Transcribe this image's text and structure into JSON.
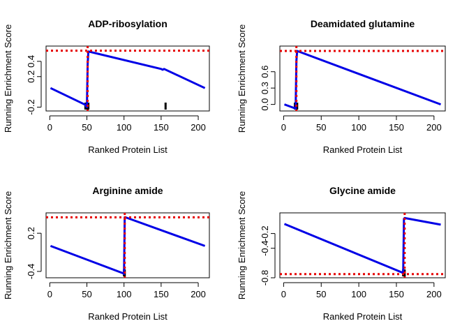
{
  "chart_data": [
    {
      "type": "line",
      "title": "ADP-ribosylation",
      "xlabel": "Ranked Protein List",
      "ylabel": "Running Enrichment Score",
      "xlim": [
        -5,
        215
      ],
      "ylim": [
        -0.25,
        0.6
      ],
      "xticks": [
        0,
        50,
        100,
        150,
        200
      ],
      "yticks": [
        -0.2,
        0.2,
        0.4
      ],
      "ytick_labels": [
        "-0.2",
        "0.2",
        "0.4"
      ],
      "x": [
        1,
        48,
        49,
        50,
        51,
        52,
        150,
        152,
        154,
        209
      ],
      "y": [
        0.05,
        -0.17,
        -0.19,
        -0.2,
        0.36,
        0.53,
        0.3,
        0.29,
        0.3,
        0.05
      ],
      "max_line": 0.54,
      "enrichment_x": 51,
      "hits": [
        48,
        49,
        50,
        51,
        52,
        156
      ]
    },
    {
      "type": "line",
      "title": "Deamidated glutamine",
      "xlabel": "Ranked Protein List",
      "ylabel": "Running Enrichment Score",
      "xlim": [
        -5,
        215
      ],
      "ylim": [
        -0.12,
        1.07
      ],
      "xticks": [
        0,
        50,
        100,
        150,
        200
      ],
      "yticks": [
        0.0,
        0.3,
        0.6
      ],
      "ytick_labels": [
        "0.0",
        "0.3",
        "0.6"
      ],
      "x": [
        1,
        15,
        16,
        17,
        18,
        209
      ],
      "y": [
        0.0,
        -0.07,
        -0.08,
        0.8,
        0.98,
        0.0
      ],
      "max_line": 0.98,
      "enrichment_x": 17,
      "hits": [
        15,
        16,
        17,
        18
      ]
    },
    {
      "type": "line",
      "title": "Arginine amide",
      "xlabel": "Ranked Protein List",
      "ylabel": "Running Enrichment Score",
      "xlim": [
        -5,
        215
      ],
      "ylim": [
        -0.5,
        0.52
      ],
      "xticks": [
        0,
        50,
        100,
        150,
        200
      ],
      "yticks": [
        -0.4,
        0.2
      ],
      "ytick_labels": [
        "-0.4",
        "0.2"
      ],
      "x": [
        1,
        99,
        100,
        101,
        102,
        209
      ],
      "y": [
        0.0,
        -0.43,
        -0.44,
        0.45,
        0.45,
        0.0
      ],
      "max_line": 0.45,
      "enrichment_x": 101,
      "hits": [
        100,
        101
      ]
    },
    {
      "type": "line",
      "title": "Glycine amide",
      "xlabel": "Ranked Protein List",
      "ylabel": "Running Enrichment Score",
      "xlim": [
        -5,
        215
      ],
      "ylim": [
        -0.8,
        0.08
      ],
      "xticks": [
        0,
        50,
        100,
        150,
        200
      ],
      "yticks": [
        -0.8,
        -0.4,
        -0.2
      ],
      "ytick_labels": [
        "-0.8",
        "-0.4",
        "-0.2"
      ],
      "x": [
        1,
        158,
        159,
        160,
        161,
        209
      ],
      "y": [
        -0.07,
        -0.73,
        -0.75,
        0.0,
        0.01,
        -0.08
      ],
      "max_line": -0.75,
      "enrichment_x": 161,
      "hits": [
        159,
        160,
        161
      ]
    }
  ]
}
